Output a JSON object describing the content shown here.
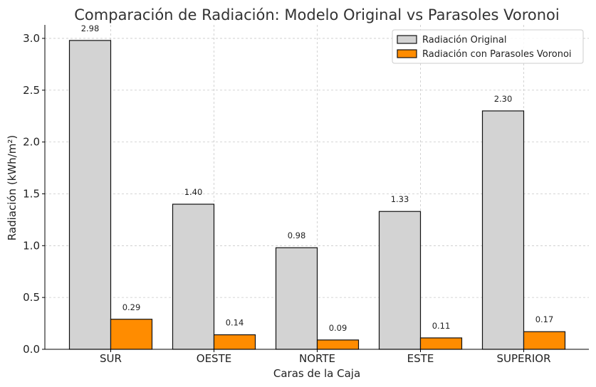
{
  "chart_data": {
    "type": "bar",
    "title": "Comparación de Radiación: Modelo Original vs Parasoles Voronoi",
    "xlabel": "Caras de la Caja",
    "ylabel": "Radiación (kWh/m²)",
    "categories": [
      "SUR",
      "OESTE",
      "NORTE",
      "ESTE",
      "SUPERIOR"
    ],
    "series": [
      {
        "name": "Radiación Original",
        "values": [
          2.98,
          1.4,
          0.98,
          1.33,
          2.3
        ],
        "labels": [
          "2.98",
          "1.40",
          "0.98",
          "1.33",
          "2.30"
        ],
        "color": "#d3d3d3"
      },
      {
        "name": "Radiación con Parasoles Voronoi",
        "values": [
          0.29,
          0.14,
          0.09,
          0.11,
          0.17
        ],
        "labels": [
          "0.29",
          "0.14",
          "0.09",
          "0.11",
          "0.17"
        ],
        "color": "#ff8c00"
      }
    ],
    "ylim": [
      0,
      3.13
    ],
    "yticks": [
      0.0,
      0.5,
      1.0,
      1.5,
      2.0,
      2.5,
      3.0
    ],
    "ytick_labels": [
      "0.0",
      "0.5",
      "1.0",
      "1.5",
      "2.0",
      "2.5",
      "3.0"
    ],
    "grid": true,
    "legend_position": "top-right"
  }
}
